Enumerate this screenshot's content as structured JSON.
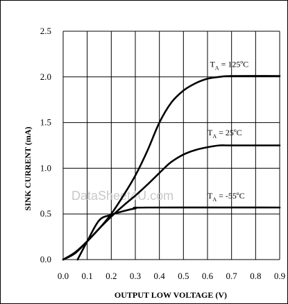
{
  "chart_data": {
    "type": "line",
    "xlabel": "OUTPUT LOW VOLTAGE (V)",
    "ylabel": "SINK CURRENT (mA)",
    "xlim": [
      0.0,
      0.9
    ],
    "ylim": [
      0.0,
      2.5
    ],
    "xticks": [
      "0.0",
      "0.1",
      "0.2",
      "0.3",
      "0.4",
      "0.5",
      "0.6",
      "0.7",
      "0.8",
      "0.9"
    ],
    "yticks": [
      "0.0",
      "0.5",
      "1.0",
      "1.5",
      "2.0",
      "2.5"
    ],
    "grid": true,
    "watermark": "DataSheet4U.com",
    "series": [
      {
        "name": "T_A = 125ºC",
        "label_main": "T",
        "label_sub": "A",
        "label_rest": " = 125ºC",
        "points": [
          [
            0.0,
            0.0
          ],
          [
            0.05,
            0.08
          ],
          [
            0.1,
            0.2
          ],
          [
            0.15,
            0.34
          ],
          [
            0.2,
            0.5
          ],
          [
            0.25,
            0.7
          ],
          [
            0.3,
            0.92
          ],
          [
            0.35,
            1.19
          ],
          [
            0.4,
            1.5
          ],
          [
            0.45,
            1.72
          ],
          [
            0.5,
            1.85
          ],
          [
            0.55,
            1.93
          ],
          [
            0.6,
            1.98
          ],
          [
            0.65,
            2.0
          ],
          [
            0.7,
            2.01
          ],
          [
            0.9,
            2.01
          ]
        ]
      },
      {
        "name": "T_A = 25ºC",
        "label_main": "T",
        "label_sub": "A",
        "label_rest": " = 25ºC",
        "points": [
          [
            0.0,
            0.0
          ],
          [
            0.05,
            0.07
          ],
          [
            0.1,
            0.2
          ],
          [
            0.15,
            0.34
          ],
          [
            0.2,
            0.47
          ],
          [
            0.25,
            0.59
          ],
          [
            0.3,
            0.7
          ],
          [
            0.35,
            0.82
          ],
          [
            0.42,
            1.0
          ],
          [
            0.45,
            1.07
          ],
          [
            0.5,
            1.15
          ],
          [
            0.55,
            1.2
          ],
          [
            0.6,
            1.23
          ],
          [
            0.65,
            1.25
          ],
          [
            0.7,
            1.25
          ],
          [
            0.9,
            1.25
          ]
        ]
      },
      {
        "name": "T_A = -55ºC",
        "label_main": "T",
        "label_sub": "A",
        "label_rest": " = -55ºC",
        "points": [
          [
            0.06,
            0.0
          ],
          [
            0.1,
            0.2
          ],
          [
            0.15,
            0.43
          ],
          [
            0.2,
            0.49
          ],
          [
            0.25,
            0.53
          ],
          [
            0.3,
            0.56
          ],
          [
            0.35,
            0.57
          ],
          [
            0.9,
            0.57
          ]
        ]
      }
    ]
  }
}
